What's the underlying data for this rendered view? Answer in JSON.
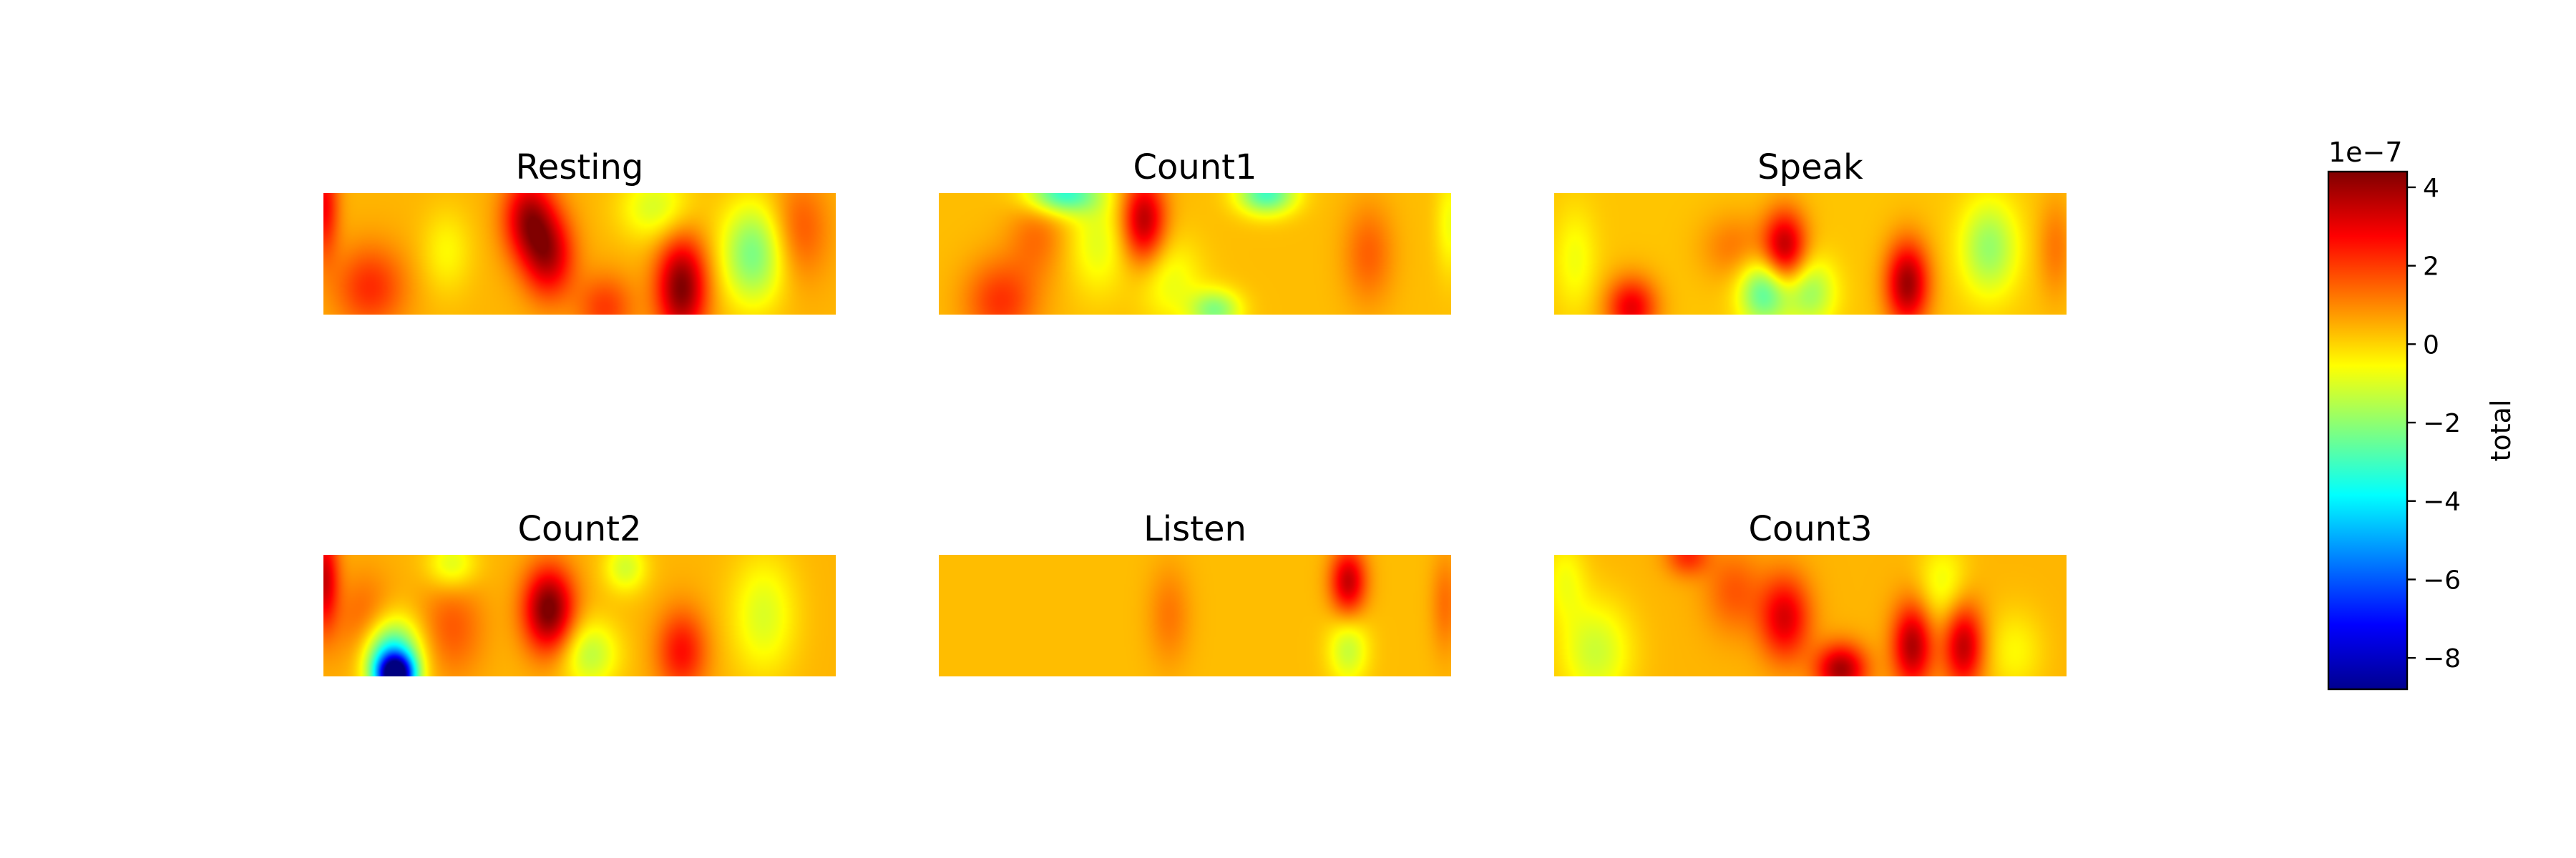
{
  "figure": {
    "colorbar": {
      "label": "total",
      "offset_text": "1e−7",
      "ticks": [
        {
          "value": 4,
          "label": "4"
        },
        {
          "value": 2,
          "label": "2"
        },
        {
          "value": 0,
          "label": "0"
        },
        {
          "value": -2,
          "label": "−2"
        },
        {
          "value": -4,
          "label": "−4"
        },
        {
          "value": -6,
          "label": "−6"
        },
        {
          "value": -8,
          "label": "−8"
        }
      ]
    }
  },
  "chart_data": {
    "type": "heatmap",
    "colormap": "jet",
    "vmin": -8.8,
    "vmax": 4.4,
    "value_scale": "1e-7",
    "colorbar_label": "total",
    "grid": false,
    "panels": [
      {
        "title": "Resting",
        "background": 0.4,
        "blobs": [
          {
            "cx": 0.0,
            "cy": 0.1,
            "sx": 0.02,
            "sy": 0.3,
            "v": 2.4
          },
          {
            "cx": 0.09,
            "cy": 0.78,
            "sx": 0.05,
            "sy": 0.25,
            "v": 1.8
          },
          {
            "cx": 0.24,
            "cy": 0.48,
            "sx": 0.035,
            "sy": 0.25,
            "v": -0.9
          },
          {
            "cx": 0.4,
            "cy": 0.2,
            "sx": 0.035,
            "sy": 0.25,
            "v": 3.2
          },
          {
            "cx": 0.44,
            "cy": 0.52,
            "sx": 0.035,
            "sy": 0.25,
            "v": 3.0
          },
          {
            "cx": 0.55,
            "cy": 0.95,
            "sx": 0.04,
            "sy": 0.2,
            "v": 1.6
          },
          {
            "cx": 0.65,
            "cy": 0.12,
            "sx": 0.05,
            "sy": 0.2,
            "v": -1.5
          },
          {
            "cx": 0.7,
            "cy": 0.78,
            "sx": 0.035,
            "sy": 0.3,
            "v": 4.0
          },
          {
            "cx": 0.84,
            "cy": 0.5,
            "sx": 0.045,
            "sy": 0.3,
            "v": -2.7
          },
          {
            "cx": 0.93,
            "cy": 0.3,
            "sx": 0.04,
            "sy": 0.3,
            "v": 1.3
          }
        ]
      },
      {
        "title": "Count1",
        "background": 0.3,
        "blobs": [
          {
            "cx": 0.12,
            "cy": 0.9,
            "sx": 0.05,
            "sy": 0.25,
            "v": 1.8
          },
          {
            "cx": 0.19,
            "cy": 0.35,
            "sx": 0.04,
            "sy": 0.25,
            "v": 1.0
          },
          {
            "cx": 0.24,
            "cy": 0.0,
            "sx": 0.05,
            "sy": 0.12,
            "v": -3.5
          },
          {
            "cx": 0.31,
            "cy": 0.4,
            "sx": 0.04,
            "sy": 0.3,
            "v": -1.2
          },
          {
            "cx": 0.4,
            "cy": 0.22,
            "sx": 0.03,
            "sy": 0.25,
            "v": 3.4
          },
          {
            "cx": 0.45,
            "cy": 0.72,
            "sx": 0.045,
            "sy": 0.25,
            "v": -1.1
          },
          {
            "cx": 0.54,
            "cy": 0.97,
            "sx": 0.035,
            "sy": 0.12,
            "v": -2.4
          },
          {
            "cx": 0.64,
            "cy": 0.0,
            "sx": 0.04,
            "sy": 0.12,
            "v": -3.3
          },
          {
            "cx": 0.84,
            "cy": 0.5,
            "sx": 0.035,
            "sy": 0.3,
            "v": 1.2
          },
          {
            "cx": 1.0,
            "cy": 0.25,
            "sx": 0.02,
            "sy": 0.3,
            "v": -1.0
          }
        ]
      },
      {
        "title": "Speak",
        "background": 0.2,
        "blobs": [
          {
            "cx": 0.04,
            "cy": 0.55,
            "sx": 0.03,
            "sy": 0.3,
            "v": -0.9
          },
          {
            "cx": 0.15,
            "cy": 0.95,
            "sx": 0.035,
            "sy": 0.18,
            "v": 2.8
          },
          {
            "cx": 0.35,
            "cy": 0.45,
            "sx": 0.045,
            "sy": 0.2,
            "v": 1.0
          },
          {
            "cx": 0.45,
            "cy": 0.45,
            "sx": 0.03,
            "sy": 0.22,
            "v": 3.5
          },
          {
            "cx": 0.41,
            "cy": 0.82,
            "sx": 0.035,
            "sy": 0.2,
            "v": -3.0
          },
          {
            "cx": 0.5,
            "cy": 0.82,
            "sx": 0.035,
            "sy": 0.2,
            "v": -2.0
          },
          {
            "cx": 0.69,
            "cy": 0.75,
            "sx": 0.03,
            "sy": 0.25,
            "v": 3.8
          },
          {
            "cx": 0.85,
            "cy": 0.45,
            "sx": 0.04,
            "sy": 0.28,
            "v": -2.1
          },
          {
            "cx": 0.98,
            "cy": 0.45,
            "sx": 0.025,
            "sy": 0.3,
            "v": 1.0
          }
        ]
      },
      {
        "title": "Count2",
        "background": 0.4,
        "blobs": [
          {
            "cx": 0.0,
            "cy": 0.2,
            "sx": 0.02,
            "sy": 0.3,
            "v": 3.0
          },
          {
            "cx": 0.08,
            "cy": 0.6,
            "sx": 0.04,
            "sy": 0.3,
            "v": 1.3
          },
          {
            "cx": 0.13,
            "cy": 0.85,
            "sx": 0.04,
            "sy": 0.22,
            "v": -4.5
          },
          {
            "cx": 0.14,
            "cy": 1.0,
            "sx": 0.025,
            "sy": 0.12,
            "v": -8.6
          },
          {
            "cx": 0.25,
            "cy": 0.08,
            "sx": 0.035,
            "sy": 0.15,
            "v": -1.5
          },
          {
            "cx": 0.25,
            "cy": 0.6,
            "sx": 0.045,
            "sy": 0.3,
            "v": 1.2
          },
          {
            "cx": 0.44,
            "cy": 0.45,
            "sx": 0.035,
            "sy": 0.25,
            "v": 4.2
          },
          {
            "cx": 0.52,
            "cy": 0.82,
            "sx": 0.04,
            "sy": 0.2,
            "v": -1.8
          },
          {
            "cx": 0.59,
            "cy": 0.1,
            "sx": 0.03,
            "sy": 0.15,
            "v": -1.5
          },
          {
            "cx": 0.7,
            "cy": 0.8,
            "sx": 0.035,
            "sy": 0.25,
            "v": 2.2
          },
          {
            "cx": 0.86,
            "cy": 0.5,
            "sx": 0.045,
            "sy": 0.35,
            "v": -1.4
          }
        ]
      },
      {
        "title": "Listen",
        "background": 0.3,
        "blobs": [
          {
            "cx": 0.45,
            "cy": 0.5,
            "sx": 0.03,
            "sy": 0.3,
            "v": 0.9
          },
          {
            "cx": 0.8,
            "cy": 0.22,
            "sx": 0.025,
            "sy": 0.2,
            "v": 3.2
          },
          {
            "cx": 0.8,
            "cy": 0.78,
            "sx": 0.028,
            "sy": 0.2,
            "v": -1.6
          },
          {
            "cx": 0.99,
            "cy": 0.4,
            "sx": 0.02,
            "sy": 0.3,
            "v": 1.0
          }
        ]
      },
      {
        "title": "Count3",
        "background": 0.4,
        "blobs": [
          {
            "cx": 0.02,
            "cy": 0.2,
            "sx": 0.03,
            "sy": 0.25,
            "v": -1.0
          },
          {
            "cx": 0.08,
            "cy": 0.8,
            "sx": 0.05,
            "sy": 0.3,
            "v": -1.6
          },
          {
            "cx": 0.26,
            "cy": 0.0,
            "sx": 0.03,
            "sy": 0.12,
            "v": 1.8
          },
          {
            "cx": 0.35,
            "cy": 0.3,
            "sx": 0.04,
            "sy": 0.25,
            "v": 1.2
          },
          {
            "cx": 0.45,
            "cy": 0.52,
            "sx": 0.035,
            "sy": 0.25,
            "v": 2.8
          },
          {
            "cx": 0.56,
            "cy": 0.95,
            "sx": 0.035,
            "sy": 0.15,
            "v": 3.5
          },
          {
            "cx": 0.7,
            "cy": 0.75,
            "sx": 0.028,
            "sy": 0.25,
            "v": 3.4
          },
          {
            "cx": 0.8,
            "cy": 0.75,
            "sx": 0.028,
            "sy": 0.25,
            "v": 3.2
          },
          {
            "cx": 0.76,
            "cy": 0.25,
            "sx": 0.035,
            "sy": 0.25,
            "v": -1.2
          },
          {
            "cx": 0.9,
            "cy": 0.8,
            "sx": 0.04,
            "sy": 0.25,
            "v": -0.9
          }
        ]
      }
    ]
  }
}
